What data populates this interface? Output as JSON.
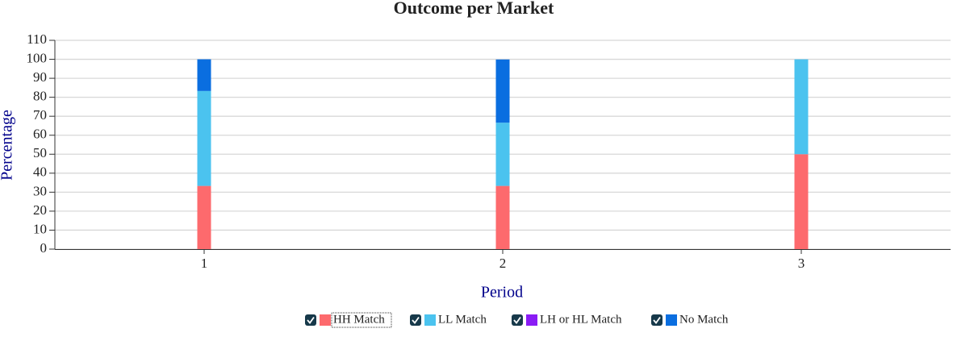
{
  "chart_data": {
    "type": "stacked_bar",
    "title": "Outcome per Market",
    "x_label": "Period",
    "y_label": "Percentage",
    "categories": [
      "1",
      "2",
      "3"
    ],
    "series": [
      {
        "name": "HH Match",
        "color": "#fd6a6d",
        "values": [
          33.3,
          33.3,
          50
        ]
      },
      {
        "name": "LL Match",
        "color": "#4bc3ef",
        "values": [
          50,
          33.3,
          50
        ]
      },
      {
        "name": "LH or HL Match",
        "color": "#8a1cf5",
        "values": [
          0,
          0,
          0
        ]
      },
      {
        "name": "No Match",
        "color": "#0a6ee0",
        "values": [
          16.7,
          33.3,
          0
        ]
      }
    ],
    "ylim": [
      0,
      110
    ],
    "yticks": [
      0,
      10,
      20,
      30,
      40,
      50,
      60,
      70,
      80,
      90,
      100,
      110
    ],
    "grid": true,
    "legend": "bottom"
  }
}
